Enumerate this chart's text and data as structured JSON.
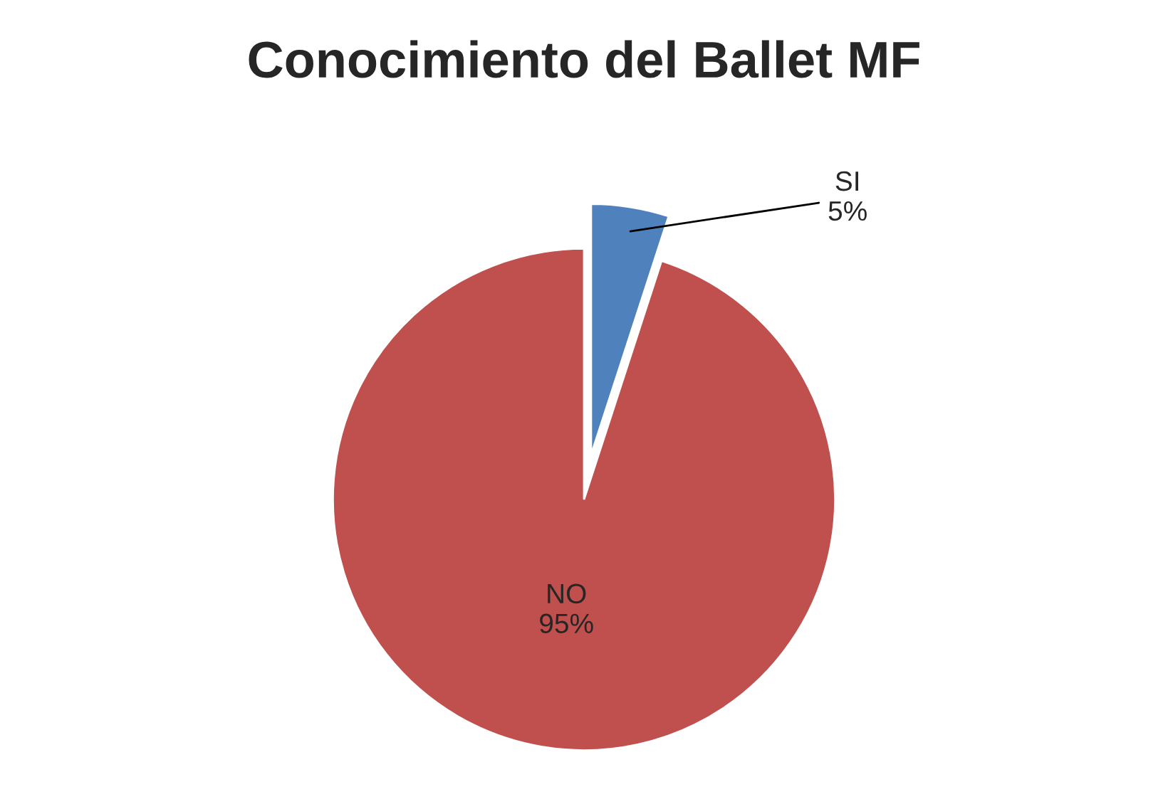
{
  "chart_data": {
    "type": "pie",
    "title": "Conocimiento del Ballet MF",
    "categories": [
      "SI",
      "NO"
    ],
    "values": [
      5,
      95
    ],
    "value_labels": [
      "5%",
      "95%"
    ],
    "colors": [
      "#4f81bd",
      "#c0504d"
    ]
  }
}
